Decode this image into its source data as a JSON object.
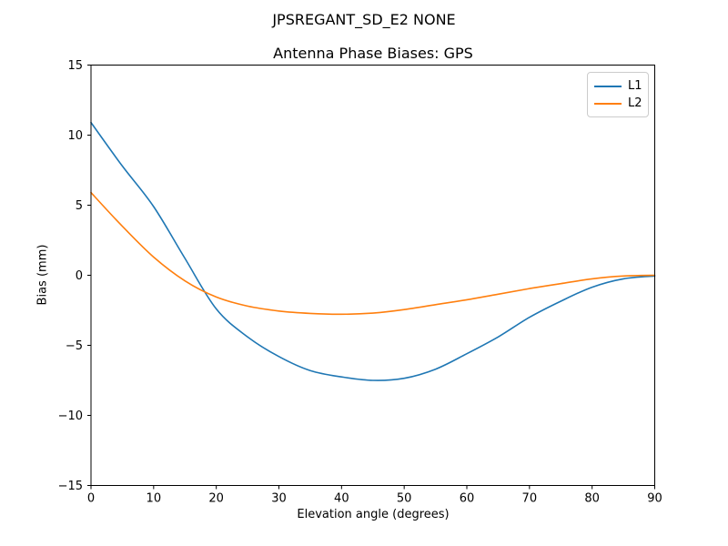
{
  "figure": {
    "background": "#ffffff",
    "axes_edge_color": "#000000",
    "text_color": "#000000"
  },
  "chart_data": {
    "type": "line",
    "title": "JPSREGANT_SD_E2 NONE",
    "subtitle": "Antenna Phase Biases: GPS",
    "xlabel": "Elevation angle (degrees)",
    "ylabel": "Bias (mm)",
    "xlim": [
      0,
      90
    ],
    "ylim": [
      -15,
      15
    ],
    "xticks": [
      0,
      10,
      20,
      30,
      40,
      50,
      60,
      70,
      80,
      90
    ],
    "xtick_labels": [
      "0",
      "10",
      "20",
      "30",
      "40",
      "50",
      "60",
      "70",
      "80",
      "90"
    ],
    "yticks": [
      15,
      10,
      5,
      0,
      -5,
      -10,
      -15
    ],
    "ytick_labels": [
      "15",
      "10",
      "5",
      "0",
      "−5",
      "−10",
      "−15"
    ],
    "grid": false,
    "legend": {
      "position": "upper right",
      "entries": [
        "L1",
        "L2"
      ]
    },
    "x": [
      0,
      5,
      10,
      15,
      20,
      25,
      30,
      35,
      40,
      45,
      50,
      55,
      60,
      65,
      70,
      75,
      80,
      85,
      90
    ],
    "series": [
      {
        "name": "L1",
        "color": "#1f77b4",
        "values": [
          10.9,
          7.8,
          4.9,
          1.2,
          -2.4,
          -4.4,
          -5.8,
          -6.8,
          -7.25,
          -7.5,
          -7.35,
          -6.7,
          -5.6,
          -4.4,
          -3.0,
          -1.85,
          -0.85,
          -0.25,
          -0.05
        ]
      },
      {
        "name": "L2",
        "color": "#ff7f0e",
        "values": [
          5.9,
          3.5,
          1.3,
          -0.4,
          -1.55,
          -2.2,
          -2.55,
          -2.72,
          -2.78,
          -2.7,
          -2.45,
          -2.1,
          -1.75,
          -1.35,
          -0.95,
          -0.6,
          -0.25,
          -0.05,
          0.0
        ]
      }
    ]
  }
}
